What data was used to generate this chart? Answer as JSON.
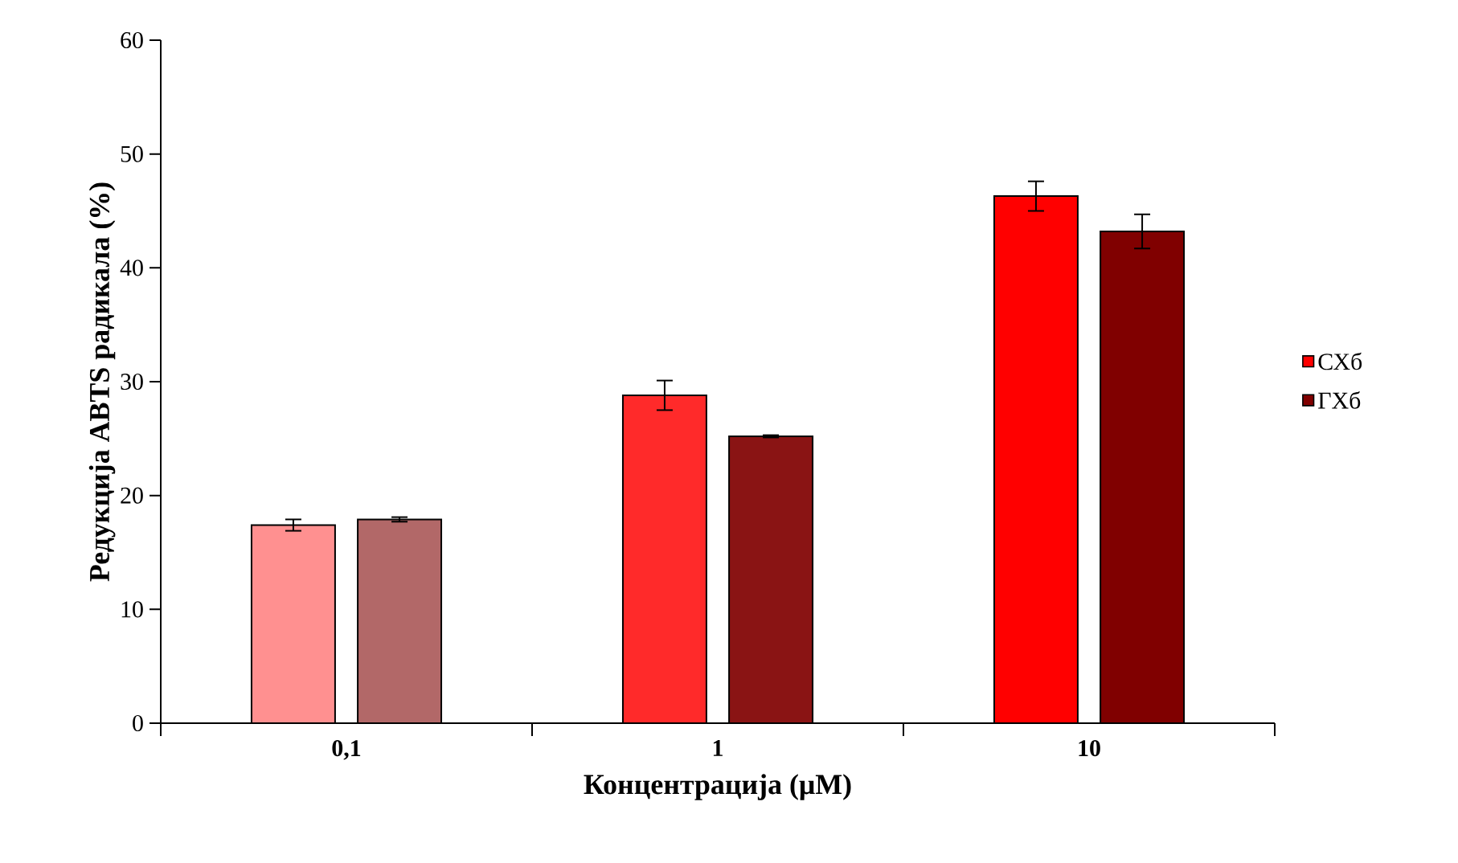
{
  "chart_data": {
    "type": "bar",
    "xlabel": "Концентрација (μM)",
    "ylabel": "Редукција ABTS радикала (%)",
    "categories": [
      "0,1",
      "1",
      "10"
    ],
    "series": [
      {
        "name": "СХб",
        "color": "#ff0000",
        "colors": [
          "#ff9090",
          "#ff2a2a",
          "#ff0000"
        ],
        "values": [
          17.4,
          28.8,
          46.3
        ],
        "errors": [
          0.5,
          1.3,
          1.3
        ]
      },
      {
        "name": "ГХб",
        "color": "#800000",
        "colors": [
          "#b26868",
          "#8a1414",
          "#800000"
        ],
        "values": [
          17.9,
          25.2,
          43.2
        ],
        "errors": [
          0.2,
          0.1,
          1.5
        ]
      }
    ],
    "ylim": [
      0,
      60
    ],
    "yticks": [
      0,
      10,
      20,
      30,
      40,
      50,
      60
    ],
    "legend": "right",
    "grid": false
  }
}
